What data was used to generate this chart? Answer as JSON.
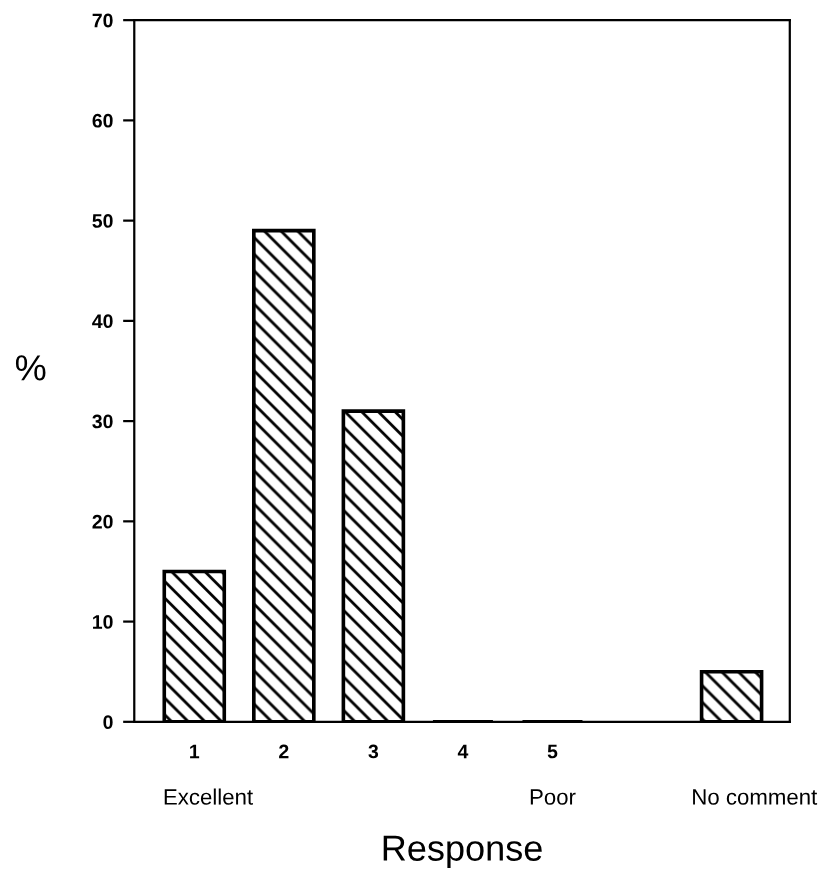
{
  "chart_data": {
    "type": "bar",
    "xlabel": "Response",
    "ylabel": "%",
    "categories": [
      "1",
      "2",
      "3",
      "4",
      "5",
      null,
      null
    ],
    "values": [
      15,
      49,
      31,
      0,
      0,
      null,
      5
    ],
    "color": "#000000",
    "ylim": [
      0,
      70
    ],
    "yticks": [
      0,
      10,
      20,
      30,
      40,
      50,
      60,
      70
    ],
    "grid": false,
    "legend": false,
    "annotations": [
      "Excellent",
      "Poor",
      "No comment"
    ]
  }
}
